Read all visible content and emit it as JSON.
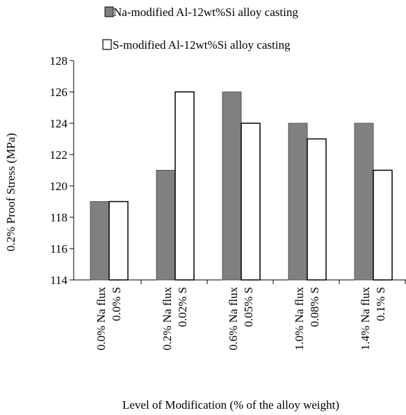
{
  "chart_data": {
    "type": "bar",
    "title": "",
    "xlabel": "Level of Modification (% of the alloy weight)",
    "ylabel": "0.2% Proof Stress (MPa)",
    "ylim": [
      114,
      128
    ],
    "yticks": [
      "114",
      "116",
      "118",
      "120",
      "122",
      "124",
      "126",
      "128"
    ],
    "grid": false,
    "legend_position": "top",
    "categories": [
      {
        "line1": "0.0% Na flux",
        "line2": "0.0% S"
      },
      {
        "line1": "0.2% Na flux",
        "line2": "0.02% S"
      },
      {
        "line1": "0.6% Na flux",
        "line2": "0.05% S"
      },
      {
        "line1": "1.0% Na flux",
        "line2": "0.08% S"
      },
      {
        "line1": "1.4% Na flux",
        "line2": "0.1% S"
      }
    ],
    "series": [
      {
        "name": "Na-modified Al-12wt%Si alloy casting",
        "values": [
          119,
          121,
          126,
          124,
          124
        ],
        "color": "#808080"
      },
      {
        "name": "S-modified Al-12wt%Si alloy casting",
        "values": [
          119,
          126,
          124,
          123,
          121
        ],
        "color": "#ffffff"
      }
    ]
  }
}
